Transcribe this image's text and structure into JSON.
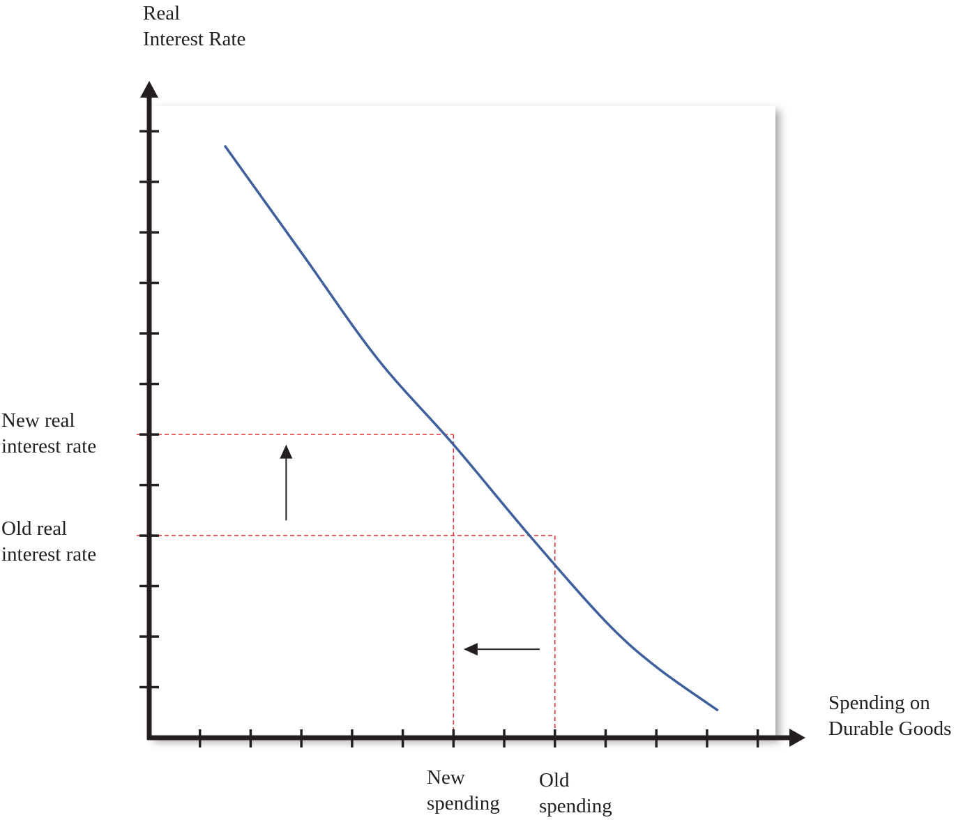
{
  "chart_data": {
    "type": "line",
    "title": "",
    "ylabel": [
      "Real",
      "Interest Rate"
    ],
    "xlabel": [
      "Spending on",
      "Durable Goods"
    ],
    "xlim": [
      0,
      12.5
    ],
    "ylim": [
      0,
      12.5
    ],
    "x_ticks": [
      1,
      2,
      3,
      4,
      5,
      6,
      7,
      8,
      9,
      10,
      11,
      12
    ],
    "y_ticks": [
      1,
      2,
      3,
      4,
      5,
      6,
      7,
      8,
      9,
      10,
      11,
      12
    ],
    "series": [
      {
        "color": "#3d5f9b",
        "points": [
          [
            1.5,
            11.7
          ],
          [
            3.0,
            9.6
          ],
          [
            4.5,
            7.5
          ],
          [
            6.0,
            5.8
          ],
          [
            7.5,
            4.0
          ],
          [
            9.0,
            2.3
          ],
          [
            10.0,
            1.4
          ],
          [
            11.2,
            0.55
          ]
        ]
      }
    ],
    "reference_lines": [
      {
        "label": [
          "New real",
          "interest rate"
        ],
        "y": 6.0,
        "x": 6.0
      },
      {
        "label": [
          "Old real",
          "interest rate"
        ],
        "y": 4.0,
        "x": 8.0
      }
    ],
    "x_markers": [
      {
        "label": [
          "New",
          "spending"
        ],
        "x": 6.0
      },
      {
        "label": [
          "Old",
          "spending"
        ],
        "x": 8.0
      }
    ],
    "arrows": [
      {
        "direction": "up",
        "from": [
          2.7,
          4.3
        ],
        "to": [
          2.7,
          5.8
        ]
      },
      {
        "direction": "left",
        "from": [
          7.7,
          1.75
        ],
        "to": [
          6.2,
          1.75
        ]
      }
    ],
    "colors": {
      "axis": "#231f20",
      "curve": "#3d5f9b",
      "reference": "#e03a3e",
      "plot_background": "#ffffff",
      "shadow": "#d6d6d6"
    }
  }
}
